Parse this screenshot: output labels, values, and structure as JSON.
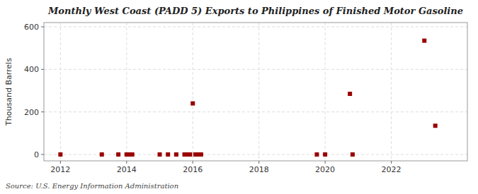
{
  "chart_data": {
    "type": "scatter",
    "title": "Monthly West Coast (PADD 5) Exports to Philippines of Finished Motor Gasoline",
    "ylabel": "Thousand Barrels",
    "annotations": [
      "Source: U.S. Energy Information Administration"
    ],
    "x": [
      2012.0,
      2013.25,
      2013.75,
      2014.0,
      2014.08,
      2014.17,
      2015.0,
      2015.25,
      2015.5,
      2015.75,
      2015.83,
      2015.92,
      2016.0,
      2016.08,
      2016.17,
      2016.25,
      2019.75,
      2020.0,
      2020.75,
      2020.83,
      2023.0,
      2023.33
    ],
    "values": [
      0,
      0,
      0,
      0,
      0,
      0,
      0,
      0,
      0,
      0,
      0,
      0,
      240,
      0,
      0,
      0,
      0,
      0,
      285,
      0,
      535,
      135
    ],
    "color": "#990000",
    "marker": "square",
    "grid": true,
    "xlim": [
      2011.5,
      2024.3
    ],
    "xticks": [
      2012,
      2014,
      2016,
      2018,
      2020,
      2022
    ],
    "ylim": [
      -30,
      620
    ],
    "yticks": [
      0,
      200,
      400,
      600
    ]
  }
}
